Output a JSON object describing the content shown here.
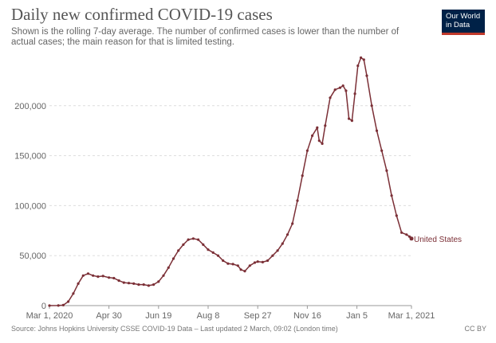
{
  "header": {
    "title": "Daily new confirmed COVID-19 cases",
    "subtitle": "Shown is the rolling 7-day average. The number of confirmed cases is lower than the number of actual cases; the main reason for that is limited testing."
  },
  "logo": {
    "line1": "Our World",
    "line2": "in Data"
  },
  "footer": {
    "source": "Source: Johns Hopkins University CSSE COVID-19 Data – Last updated 2 March, 09:02 (London time)",
    "license": "CC BY"
  },
  "colors": {
    "series": "#7b2f36",
    "grid": "#dddddd",
    "axis": "#666666",
    "logo_bg": "#002147",
    "logo_bar": "#c0392b"
  },
  "chart_data": {
    "type": "line",
    "title": "Daily new confirmed COVID-19 cases",
    "subtitle": "Shown is the rolling 7-day average. The number of confirmed cases is lower than the number of actual cases; the main reason for that is limited testing.",
    "xlabel": "",
    "ylabel": "",
    "x_ticks": [
      {
        "label": "Mar 1, 2020",
        "date": "2020-03-01"
      },
      {
        "label": "Apr 30",
        "date": "2020-04-30"
      },
      {
        "label": "Jun 19",
        "date": "2020-06-19"
      },
      {
        "label": "Aug 8",
        "date": "2020-08-08"
      },
      {
        "label": "Sep 27",
        "date": "2020-09-27"
      },
      {
        "label": "Nov 16",
        "date": "2020-11-16"
      },
      {
        "label": "Jan 5",
        "date": "2021-01-05"
      },
      {
        "label": "Mar 1, 2021",
        "date": "2021-03-01"
      }
    ],
    "y_ticks": [
      {
        "value": 0,
        "label": "0"
      },
      {
        "value": 50000,
        "label": "50,000"
      },
      {
        "value": 100000,
        "label": "100,000"
      },
      {
        "value": 150000,
        "label": "150,000"
      },
      {
        "value": 200000,
        "label": "200,000"
      }
    ],
    "ylim": [
      0,
      250000
    ],
    "xlim": [
      "2020-03-01",
      "2021-03-01"
    ],
    "grid": true,
    "series": [
      {
        "name": "United States",
        "points": [
          [
            "2020-03-01",
            0
          ],
          [
            "2020-03-10",
            100
          ],
          [
            "2020-03-15",
            500
          ],
          [
            "2020-03-20",
            4000
          ],
          [
            "2020-03-25",
            12000
          ],
          [
            "2020-03-30",
            22000
          ],
          [
            "2020-04-04",
            30000
          ],
          [
            "2020-04-09",
            32000
          ],
          [
            "2020-04-14",
            30000
          ],
          [
            "2020-04-19",
            29000
          ],
          [
            "2020-04-24",
            29500
          ],
          [
            "2020-04-30",
            28000
          ],
          [
            "2020-05-05",
            27500
          ],
          [
            "2020-05-10",
            25000
          ],
          [
            "2020-05-15",
            23000
          ],
          [
            "2020-05-20",
            22500
          ],
          [
            "2020-05-25",
            22000
          ],
          [
            "2020-05-30",
            21000
          ],
          [
            "2020-06-04",
            21000
          ],
          [
            "2020-06-09",
            20000
          ],
          [
            "2020-06-14",
            21000
          ],
          [
            "2020-06-19",
            24000
          ],
          [
            "2020-06-24",
            30000
          ],
          [
            "2020-06-29",
            38000
          ],
          [
            "2020-07-04",
            47000
          ],
          [
            "2020-07-09",
            55000
          ],
          [
            "2020-07-14",
            61000
          ],
          [
            "2020-07-19",
            66000
          ],
          [
            "2020-07-24",
            67000
          ],
          [
            "2020-07-29",
            66000
          ],
          [
            "2020-08-03",
            61000
          ],
          [
            "2020-08-08",
            56000
          ],
          [
            "2020-08-13",
            53000
          ],
          [
            "2020-08-18",
            50000
          ],
          [
            "2020-08-23",
            45000
          ],
          [
            "2020-08-28",
            42000
          ],
          [
            "2020-09-02",
            41500
          ],
          [
            "2020-09-07",
            40000
          ],
          [
            "2020-09-10",
            36000
          ],
          [
            "2020-09-14",
            34500
          ],
          [
            "2020-09-19",
            40000
          ],
          [
            "2020-09-24",
            43000
          ],
          [
            "2020-09-27",
            44000
          ],
          [
            "2020-10-02",
            43500
          ],
          [
            "2020-10-07",
            45000
          ],
          [
            "2020-10-12",
            50000
          ],
          [
            "2020-10-17",
            55000
          ],
          [
            "2020-10-22",
            62000
          ],
          [
            "2020-10-27",
            71000
          ],
          [
            "2020-11-01",
            82000
          ],
          [
            "2020-11-06",
            105000
          ],
          [
            "2020-11-11",
            130000
          ],
          [
            "2020-11-16",
            155000
          ],
          [
            "2020-11-21",
            170000
          ],
          [
            "2020-11-26",
            178000
          ],
          [
            "2020-11-28",
            165000
          ],
          [
            "2020-12-01",
            162000
          ],
          [
            "2020-12-04",
            180000
          ],
          [
            "2020-12-09",
            208000
          ],
          [
            "2020-12-14",
            216000
          ],
          [
            "2020-12-19",
            218000
          ],
          [
            "2020-12-22",
            220000
          ],
          [
            "2020-12-25",
            215000
          ],
          [
            "2020-12-28",
            187000
          ],
          [
            "2020-12-31",
            185000
          ],
          [
            "2021-01-03",
            212000
          ],
          [
            "2021-01-06",
            240000
          ],
          [
            "2021-01-09",
            248000
          ],
          [
            "2021-01-12",
            246000
          ],
          [
            "2021-01-15",
            230000
          ],
          [
            "2021-01-20",
            200000
          ],
          [
            "2021-01-25",
            175000
          ],
          [
            "2021-01-30",
            155000
          ],
          [
            "2021-02-04",
            135000
          ],
          [
            "2021-02-09",
            110000
          ],
          [
            "2021-02-14",
            90000
          ],
          [
            "2021-02-19",
            73000
          ],
          [
            "2021-02-24",
            71000
          ],
          [
            "2021-02-27",
            69000
          ],
          [
            "2021-03-01",
            67000
          ]
        ]
      }
    ]
  }
}
